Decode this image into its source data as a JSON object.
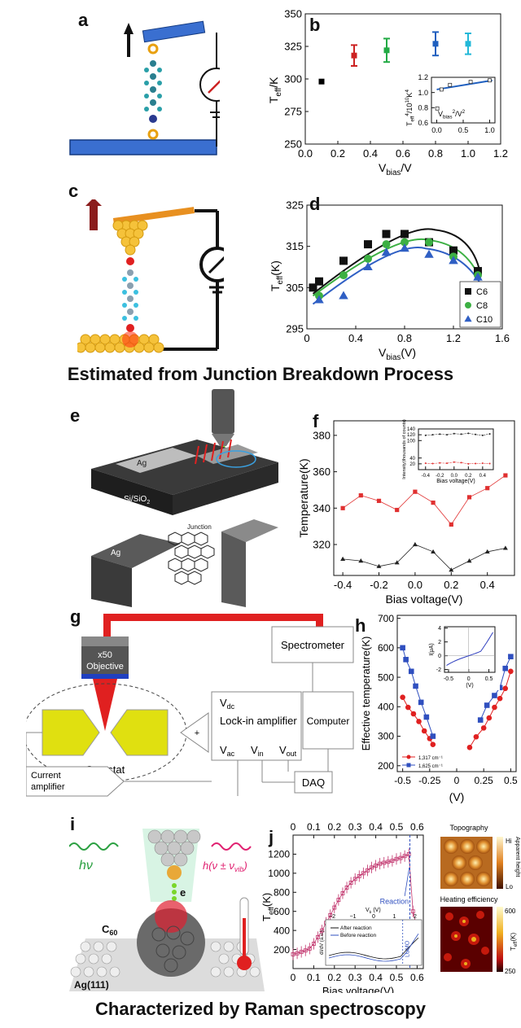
{
  "panels": {
    "a": "a",
    "b": "b",
    "c": "c",
    "d": "d",
    "e": "e",
    "f": "f",
    "g": "g",
    "h": "h",
    "i": "i",
    "j": "j"
  },
  "captions": {
    "breakdown": "Estimated from Junction Breakdown Process",
    "raman": "Characterized by Raman spectroscopy"
  },
  "figure_text": {
    "e_ag_top": "Ag",
    "e_substrate": "Si/SiO",
    "e_substrate_sub": "2",
    "e_junction": "Junction",
    "e_ag_bottom": "Ag",
    "g_objective_mag": "x50",
    "g_objective": "Objective",
    "g_spectrometer": "Spectrometer",
    "g_vdc": "V",
    "g_vdc_sub": "dc",
    "g_lockin": "Lock-in amplifier",
    "g_vac": "V",
    "g_vac_sub": "ac",
    "g_vin": "V",
    "g_vin_sub": "in",
    "g_vout": "V",
    "g_vout_sub": "out",
    "g_computer": "Computer",
    "g_cryostat": "Cryostat",
    "g_current": "Current",
    "g_amplifier": "amplifier",
    "g_daq": "DAQ",
    "g_plus": "+",
    "i_e": "e",
    "i_c60": "C",
    "i_c60_sub": "60",
    "i_ag": "Ag(111)",
    "i_hv": "hν",
    "i_hvib": "h(ν ± ν",
    "i_hvib_sub": "vib",
    "i_hvib_end": ")",
    "j_topo": "Topography",
    "j_hi": "Hi",
    "j_lo": "Lo",
    "j_apparent": "Apparent height",
    "j_heating": "Heating efficiency",
    "j_600": "600",
    "j_250": "250",
    "j_teff": "T",
    "j_teff_sub": "eff",
    "j_teff_unit": "(K)"
  },
  "chart_data": [
    {
      "panel": "b",
      "type": "scatter",
      "xlabel": "V",
      "xlabel_sub": "bias",
      "xlabel_unit": "/V",
      "ylabel": "T",
      "ylabel_sub": "eff",
      "ylabel_unit": "/K",
      "xlim": [
        0.0,
        1.2
      ],
      "ylim": [
        250,
        350
      ],
      "xticks": [
        "0.0",
        "0.2",
        "0.4",
        "0.6",
        "0.8",
        "1.0",
        "1.2"
      ],
      "yticks": [
        "250",
        "275",
        "300",
        "325",
        "350"
      ],
      "points": [
        {
          "x": 0.1,
          "y": 298,
          "err": 0,
          "color": "#000000"
        },
        {
          "x": 0.3,
          "y": 318,
          "err": 8,
          "color": "#cc2222"
        },
        {
          "x": 0.5,
          "y": 322,
          "err": 9,
          "color": "#22aa44"
        },
        {
          "x": 0.8,
          "y": 327,
          "err": 9,
          "color": "#1f5fbf"
        },
        {
          "x": 1.0,
          "y": 327,
          "err": 8,
          "color": "#22b8d8"
        }
      ],
      "inset": {
        "xlabel": "V",
        "xlabel_sub": "bias",
        "xlabel_sup": "2",
        "xlabel_unit": "/V",
        "xlabel_unit_sup": "2",
        "ylabel": "T",
        "ylabel_sub": "eff",
        "ylabel_sup": "4",
        "ylabel_unit": "/10",
        "ylabel_unit_sup": "10",
        "ylabel_unit2": "K",
        "ylabel_unit2_sup": "4",
        "xlim": [
          -0.1,
          1.1
        ],
        "ylim": [
          0.6,
          1.2
        ],
        "xticks": [
          "0.0",
          "0.5",
          "1.0"
        ],
        "yticks": [
          "0.6",
          "0.8",
          "1.0",
          "1.2"
        ],
        "x": [
          0.01,
          0.09,
          0.25,
          0.64,
          1.0
        ],
        "y": [
          0.79,
          1.04,
          1.1,
          1.14,
          1.16
        ],
        "fit": [
          [
            0.0,
            1.04
          ],
          [
            1.05,
            1.16
          ]
        ]
      }
    },
    {
      "panel": "d",
      "type": "scatter",
      "xlabel": "V",
      "xlabel_sub": "bias",
      "xlabel_unit": "(V)",
      "ylabel": "T",
      "ylabel_sub": "eff",
      "ylabel_unit": "(K)",
      "xlim": [
        0.0,
        1.6
      ],
      "ylim": [
        295,
        325
      ],
      "xticks": [
        "0",
        "0.4",
        "0.8",
        "1.2",
        "1.6"
      ],
      "yticks": [
        "295",
        "305",
        "315",
        "325"
      ],
      "series": [
        {
          "name": "C6",
          "color": "#111111",
          "marker": "square",
          "x": [
            0.05,
            0.1,
            0.3,
            0.5,
            0.65,
            0.8,
            1.0,
            1.2,
            1.4
          ],
          "y": [
            305,
            306.5,
            311.5,
            315.5,
            318,
            318,
            316,
            314,
            309
          ],
          "fit": {
            "peak_x": 1.05,
            "peak_y": 319,
            "x0": 0.05,
            "y0": 303.5,
            "x1": 1.42,
            "y1": 308.5
          }
        },
        {
          "name": "C8",
          "color": "#3cb043",
          "marker": "circle",
          "x": [
            0.1,
            0.3,
            0.5,
            0.65,
            0.8,
            1.0,
            1.2,
            1.4
          ],
          "y": [
            303,
            308,
            312,
            315.5,
            316,
            316,
            312.5,
            308
          ],
          "fit": {
            "peak_x": 1.0,
            "peak_y": 316.5,
            "x0": 0.05,
            "y0": 303,
            "x1": 1.42,
            "y1": 307
          }
        },
        {
          "name": "C10",
          "color": "#2f5fc4",
          "marker": "triangle",
          "x": [
            0.1,
            0.3,
            0.5,
            0.65,
            0.8,
            1.0,
            1.2,
            1.4
          ],
          "y": [
            302,
            303,
            310,
            313.5,
            314.5,
            313,
            311.5,
            307.5
          ],
          "fit": {
            "peak_x": 0.97,
            "peak_y": 314.5,
            "x0": 0.05,
            "y0": 301,
            "x1": 1.42,
            "y1": 306
          }
        }
      ]
    },
    {
      "panel": "f",
      "type": "line",
      "xlabel": "Bias voltage(V)",
      "ylabel": "Temperature(K)",
      "xlim": [
        -0.45,
        0.55
      ],
      "ylim": [
        303,
        388
      ],
      "xticks": [
        "-0.4",
        "-0.2",
        "0.0",
        "0.2",
        "0.4"
      ],
      "xtick_values": [
        -0.4,
        -0.2,
        0.0,
        0.2,
        0.4
      ],
      "yticks": [
        "320",
        "340",
        "360",
        "380"
      ],
      "ytick_values": [
        320,
        340,
        360,
        380
      ],
      "x": [
        -0.4,
        -0.3,
        -0.2,
        -0.1,
        0.0,
        0.1,
        0.2,
        0.3,
        0.4,
        0.5
      ],
      "series": [
        {
          "color": "#e03030",
          "marker": "square",
          "y": [
            340,
            347,
            344,
            339,
            349,
            343,
            331,
            346,
            351,
            358
          ]
        },
        {
          "color": "#222222",
          "marker": "triangle",
          "y": [
            312,
            311,
            308,
            310,
            320,
            316,
            306,
            311,
            316,
            318
          ]
        }
      ],
      "inset": {
        "xlabel": "Bias voltage(V)",
        "ylabel": "Intensity(thousands of counts)",
        "xlim": [
          -0.5,
          0.55
        ],
        "ylim": [
          0,
          140
        ],
        "xticks": [
          "-0.4",
          "-0.2",
          "0.0",
          "0.2",
          "0.4"
        ],
        "yticks": [
          "20",
          "40",
          "100",
          "120",
          "140"
        ],
        "x": [
          -0.4,
          -0.3,
          -0.2,
          -0.1,
          0.0,
          0.1,
          0.2,
          0.3,
          0.4,
          0.5
        ],
        "series": [
          {
            "color": "#222222",
            "y": [
              118,
              120,
              122,
              120,
              124,
              122,
              125,
              121,
              118,
              123
            ]
          },
          {
            "color": "#e03030",
            "y": [
              22,
              21,
              23,
              22,
              26,
              24,
              20,
              21,
              22,
              21
            ]
          }
        ]
      }
    },
    {
      "panel": "h",
      "type": "line",
      "xlabel": "(V)",
      "ylabel": "Effective temperature(K)",
      "xlim": [
        -0.55,
        0.55
      ],
      "ylim": [
        180,
        710
      ],
      "xticks": [
        "-0.5",
        "-0.25",
        "0",
        "0.25",
        "0.5"
      ],
      "xtick_values": [
        -0.5,
        -0.25,
        0,
        0.25,
        0.5
      ],
      "yticks": [
        "200",
        "300",
        "400",
        "500",
        "600",
        "700"
      ],
      "ytick_values": [
        200,
        300,
        400,
        500,
        600,
        700
      ],
      "series": [
        {
          "name": "1,317 cm⁻¹",
          "color": "#e02020",
          "marker": "circle",
          "x": [
            -0.5,
            -0.45,
            -0.4,
            -0.35,
            -0.3,
            -0.25,
            -0.22,
            0.12,
            0.18,
            0.25,
            0.3,
            0.35,
            0.4,
            0.45,
            0.5
          ],
          "y": [
            432,
            398,
            376,
            350,
            318,
            292,
            272,
            262,
            298,
            328,
            362,
            398,
            428,
            462,
            520
          ]
        },
        {
          "name": "1,625 cm⁻¹",
          "color": "#2f4fbf",
          "marker": "square",
          "x": [
            -0.5,
            -0.47,
            -0.42,
            -0.38,
            -0.33,
            -0.28,
            -0.22,
            0.22,
            0.28,
            0.35,
            0.4,
            0.45,
            0.5
          ],
          "y": [
            600,
            560,
            520,
            470,
            415,
            365,
            300,
            355,
            405,
            438,
            465,
            530,
            570
          ]
        }
      ],
      "inset": {
        "xlabel": "(V)",
        "ylabel": "I(μA)",
        "xlim": [
          -0.6,
          0.65
        ],
        "ylim": [
          -2.4,
          4.2
        ],
        "xticks": [
          "-0.5",
          "0",
          "0.5"
        ],
        "yticks": [
          "-2",
          "0",
          "2",
          "4"
        ]
      }
    },
    {
      "panel": "j",
      "type": "line",
      "xlabel": "Bias voltage(V)",
      "ylabel": "T",
      "ylabel_sub": "eff",
      "ylabel_unit": "(K)",
      "xlim": [
        0.0,
        0.63
      ],
      "ylim": [
        0,
        1400
      ],
      "xticks": [
        "0",
        "0.1",
        "0.2",
        "0.3",
        "0.4",
        "0.5",
        "0.6"
      ],
      "yticks": [
        "200",
        "400",
        "600",
        "800",
        "1000",
        "1200"
      ],
      "series": [
        {
          "color": "#c0306a",
          "marker": "square",
          "x": [
            0.0,
            0.02,
            0.04,
            0.06,
            0.08,
            0.1,
            0.12,
            0.14,
            0.16,
            0.18,
            0.2,
            0.22,
            0.24,
            0.26,
            0.28,
            0.3,
            0.32,
            0.34,
            0.36,
            0.38,
            0.4,
            0.42,
            0.44,
            0.46,
            0.48,
            0.5,
            0.52,
            0.54,
            0.56,
            0.58,
            0.6
          ],
          "y": [
            150,
            160,
            175,
            190,
            210,
            260,
            330,
            400,
            480,
            560,
            640,
            720,
            790,
            850,
            900,
            940,
            970,
            1000,
            1030,
            1060,
            1080,
            1100,
            1110,
            1120,
            1130,
            1150,
            1160,
            1180,
            1200,
            600,
            420
          ]
        }
      ],
      "annotation": "Reaction",
      "reaction_x": 0.565,
      "inset": {
        "xlabel": "V",
        "xlabel_sub": "b",
        "xlabel_unit": " (V)",
        "ylabel": "dI/dV (a.u.)",
        "xticks": [
          "−2",
          "−1",
          "0",
          "1",
          "2"
        ],
        "legend": [
          "After reaction",
          "Before reaction"
        ],
        "annotation": "LUMO"
      }
    }
  ]
}
